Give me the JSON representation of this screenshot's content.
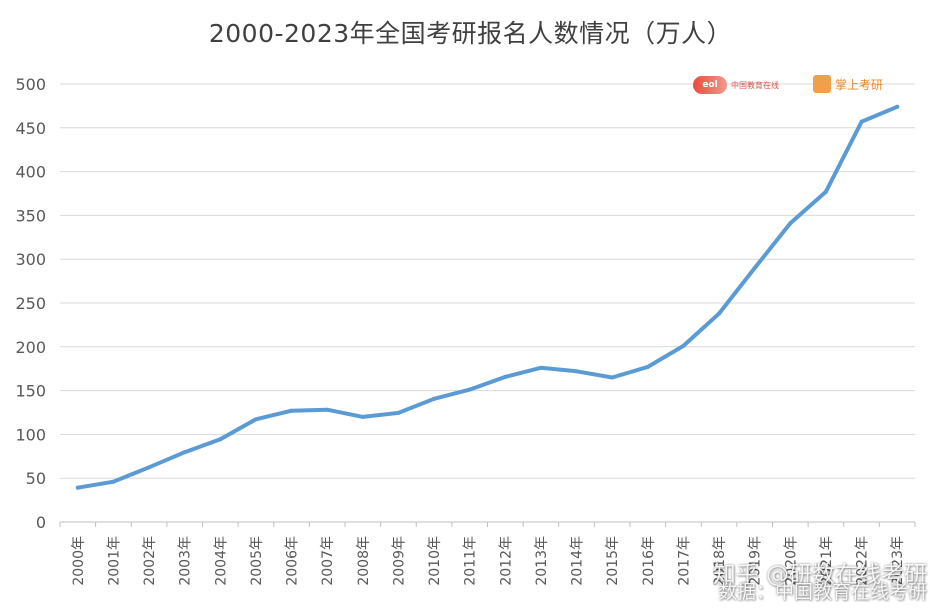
{
  "chart_data": {
    "type": "line",
    "title": "2000-2023年全国考研报名人数情况（万人）",
    "xlabel": "",
    "ylabel": "",
    "ylim": [
      0,
      500
    ],
    "yticks": [
      0,
      50,
      100,
      150,
      200,
      250,
      300,
      350,
      400,
      450,
      500
    ],
    "grid": true,
    "categories": [
      "2000年",
      "2001年",
      "2002年",
      "2003年",
      "2004年",
      "2005年",
      "2006年",
      "2007年",
      "2008年",
      "2009年",
      "2010年",
      "2011年",
      "2012年",
      "2013年",
      "2014年",
      "2015年",
      "2016年",
      "2017年",
      "2018年",
      "2019年",
      "2020年",
      "2021年",
      "2022年",
      "2023年"
    ],
    "series": [
      {
        "color": "#5b9bd5",
        "values": [
          39.2,
          46,
          62.4,
          79.7,
          94.5,
          117.2,
          127.1,
          128.2,
          120,
          124.6,
          140.6,
          151.1,
          165.6,
          176,
          172,
          164.9,
          177,
          201,
          238,
          290,
          341,
          377,
          457,
          474
        ]
      }
    ]
  },
  "logos": {
    "left": {
      "mark": "eol",
      "text": "中国教育在线"
    },
    "right": {
      "text": "掌上考研"
    }
  },
  "watermark": {
    "line1": "知乎 @研数在线考研",
    "line2": "数据：中国教育在线考研"
  },
  "colors": {
    "line": "#5b9bd5",
    "grid": "#d9d9d9",
    "axis_text": "#595959"
  }
}
